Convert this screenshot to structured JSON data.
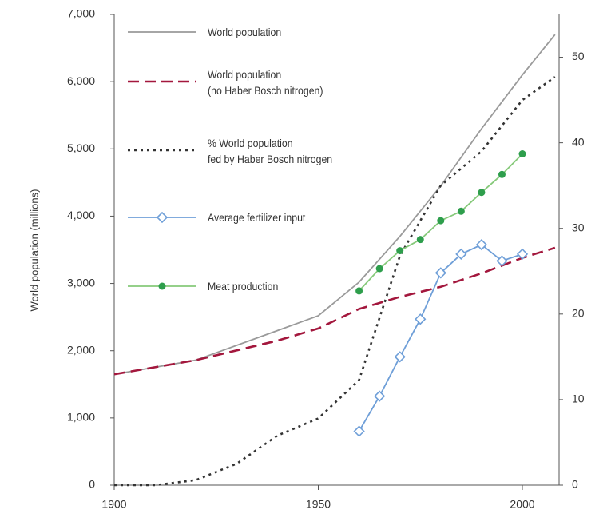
{
  "chart_data": {
    "type": "line",
    "y_label": "World population (millions)",
    "xlim": [
      1900,
      2009
    ],
    "xticks": [
      1900,
      1950,
      2000
    ],
    "ylim": [
      0,
      7000
    ],
    "yticks": [
      0,
      {
        "value": 1000,
        "label": "1,000"
      },
      {
        "value": 2000,
        "label": "2,000"
      },
      {
        "value": 3000,
        "label": "3,000"
      },
      {
        "value": 4000,
        "label": "4,000"
      },
      {
        "value": 5000,
        "label": "5,000"
      },
      {
        "value": 6000,
        "label": "6,000"
      },
      {
        "value": 7000,
        "label": "7,000"
      }
    ],
    "y2lim": [
      0,
      55
    ],
    "y2ticks": [
      0,
      10,
      20,
      30,
      40,
      50
    ],
    "series": [
      {
        "name": "World population",
        "color": "#9a9a9a",
        "style": "solid",
        "x": [
          1900,
          1920,
          1940,
          1950,
          1960,
          1970,
          1980,
          1990,
          2000,
          2008
        ],
        "values": [
          1650,
          1860,
          2300,
          2520,
          3020,
          3700,
          4450,
          5300,
          6100,
          6700
        ]
      },
      {
        "name": "World population\n(no Haber Bosch nitrogen)",
        "color": "#a3173d",
        "style": "dashed",
        "x": [
          1900,
          1920,
          1940,
          1950,
          1960,
          1970,
          1980,
          1990,
          2000,
          2008
        ],
        "values": [
          1650,
          1860,
          2150,
          2330,
          2620,
          2800,
          2950,
          3150,
          3380,
          3530
        ]
      },
      {
        "name": "% World population\nfed by Haber Bosch nitrogen",
        "color": "#333333",
        "style": "dotted",
        "axis": "y2",
        "x": [
          1900,
          1910,
          1920,
          1930,
          1940,
          1950,
          1960,
          1970,
          1980,
          1990,
          2000,
          2008
        ],
        "values": [
          0,
          0,
          0.6,
          2.5,
          5.8,
          7.8,
          12.3,
          26.8,
          35,
          39,
          45,
          47.7
        ]
      },
      {
        "name": "Average fertilizer input",
        "color": "#6f9fd8",
        "style": "solid",
        "marker": "diamond",
        "axis": "y2",
        "x": [
          1960,
          1965,
          1970,
          1975,
          1980,
          1985,
          1990,
          1995,
          2000
        ],
        "values": [
          6.3,
          10.4,
          15,
          19.4,
          24.8,
          27,
          28.1,
          26.2,
          27
        ]
      },
      {
        "name": "Meat production",
        "color": "#86c97a",
        "marker_color": "#2e9e4c",
        "style": "solid",
        "marker": "dot",
        "axis": "y2",
        "x": [
          1960,
          1965,
          1970,
          1975,
          1980,
          1985,
          1990,
          1995,
          2000
        ],
        "values": [
          22.7,
          25.3,
          27.4,
          28.7,
          30.9,
          32,
          34.2,
          36.3,
          38.7
        ]
      }
    ]
  }
}
